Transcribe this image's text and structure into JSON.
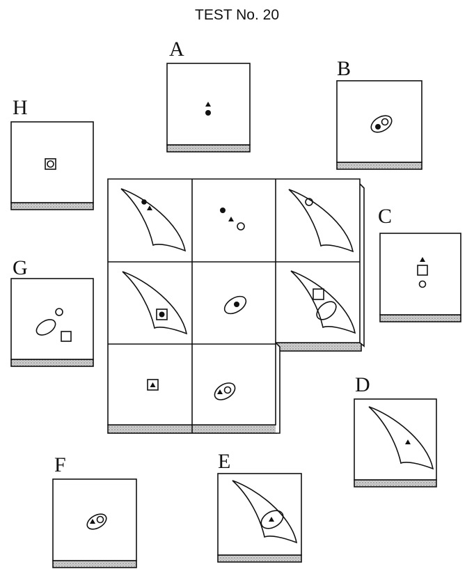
{
  "title": "TEST No. 20",
  "options": {
    "A": "A",
    "B": "B",
    "C": "C",
    "D": "D",
    "E": "E",
    "F": "F",
    "G": "G",
    "H": "H"
  },
  "colors": {
    "ink": "#111111",
    "shadow": "#bdbdbd",
    "paper": "#ffffff"
  }
}
